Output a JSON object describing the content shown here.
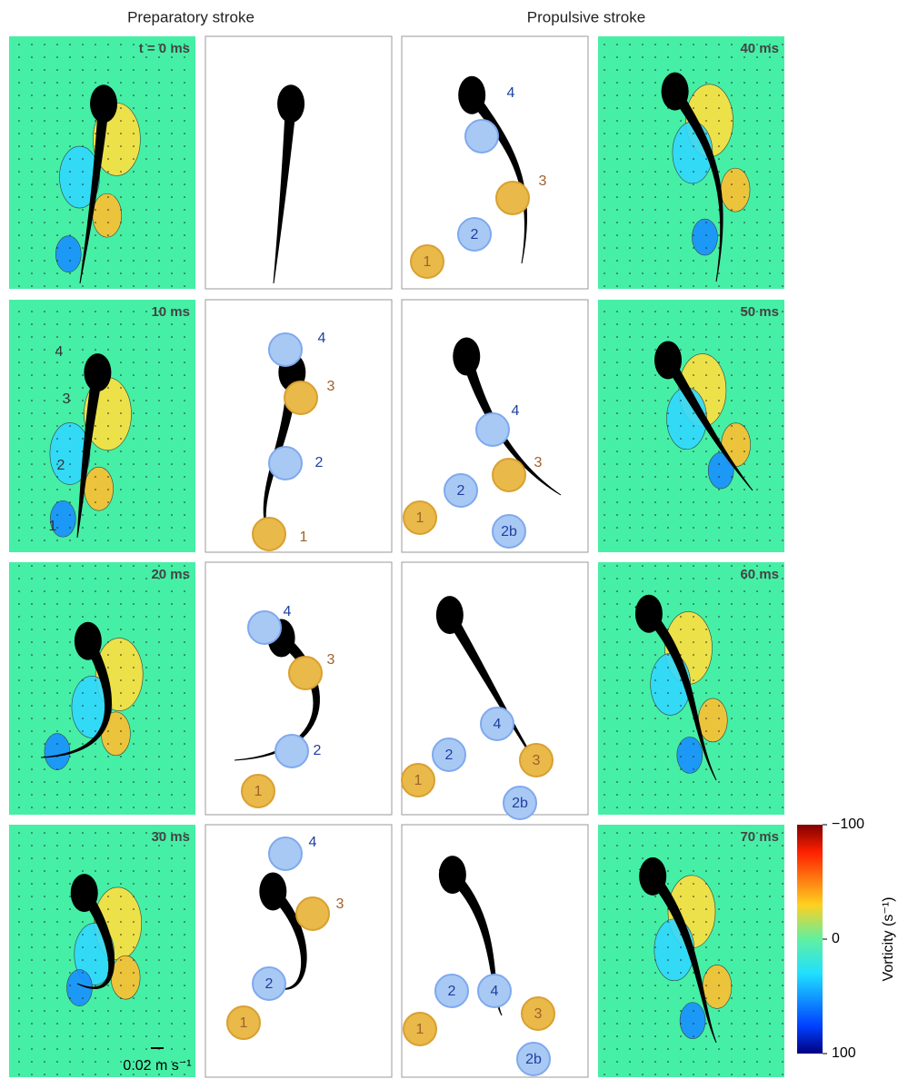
{
  "headers": [
    "Preparatory stroke",
    "Propulsive stroke"
  ],
  "rows": [
    {
      "left_time": "t = 0 ms",
      "piv_labels": [],
      "prep_labels": [],
      "prop_labels": [
        "4",
        "3",
        "2",
        "1"
      ],
      "right_time": "40 ms"
    },
    {
      "left_time": "10 ms",
      "piv_labels": [
        "4",
        "3",
        "2",
        "1"
      ],
      "prep_labels": [
        "4",
        "3",
        "2",
        "1"
      ],
      "prop_labels": [
        "4",
        "3",
        "2",
        "1",
        "2b"
      ],
      "right_time": "50 ms"
    },
    {
      "left_time": "20 ms",
      "piv_labels": [],
      "prep_labels": [
        "4",
        "3",
        "2",
        "1"
      ],
      "prop_labels": [
        "4",
        "3",
        "2",
        "1",
        "2b"
      ],
      "right_time": "60 ms"
    },
    {
      "left_time": "30 ms",
      "piv_labels": [],
      "prep_labels": [
        "4",
        "3",
        "2",
        "1"
      ],
      "prop_labels": [
        "2",
        "4",
        "1",
        "3",
        "2b"
      ],
      "right_time": "70 ms"
    }
  ],
  "scale_bar": "0.02 m s⁻¹",
  "colorbar": {
    "label": "Vorticity (s⁻¹)",
    "lim": [
      -100,
      100
    ],
    "ticks": [
      {
        "value": -100,
        "label": "−100"
      },
      0,
      100
    ]
  }
}
